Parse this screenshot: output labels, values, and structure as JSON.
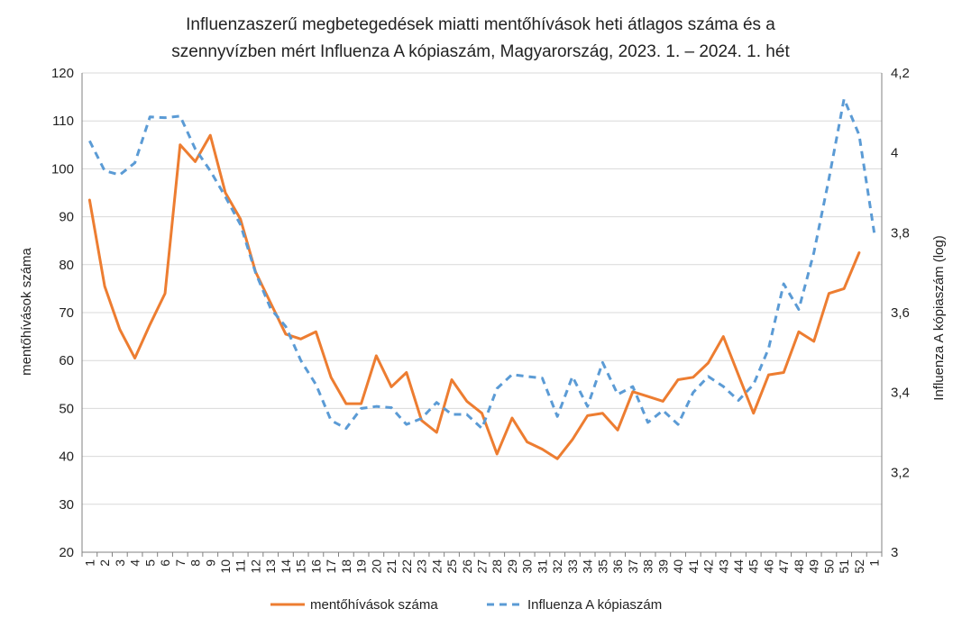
{
  "chart_data": {
    "type": "line",
    "title": [
      "Influenzaszerű megbetegedések miatti mentőhívások heti átlagos száma és a",
      "szennyvízben mért Influenza A kópiaszám, Magyarország, 2023. 1. – 2024. 1. hét"
    ],
    "ylabel": "mentőhívások száma",
    "y2label": "Influenza A kópiaszám (log)",
    "ylim": [
      20,
      120
    ],
    "y2lim": [
      3,
      4.2
    ],
    "yticks": [
      "20",
      "30",
      "40",
      "50",
      "60",
      "70",
      "80",
      "90",
      "100",
      "110",
      "120"
    ],
    "y2ticks": [
      "3",
      "3,2",
      "3,4",
      "3,6",
      "3,8",
      "4",
      "4,2"
    ],
    "categories": [
      "1",
      "2",
      "3",
      "4",
      "5",
      "6",
      "7",
      "8",
      "9",
      "10",
      "11",
      "12",
      "13",
      "14",
      "15",
      "16",
      "17",
      "18",
      "19",
      "20",
      "21",
      "22",
      "23",
      "24",
      "25",
      "26",
      "27",
      "28",
      "29",
      "30",
      "31",
      "32",
      "33",
      "34",
      "35",
      "36",
      "37",
      "38",
      "39",
      "40",
      "41",
      "42",
      "43",
      "44",
      "45",
      "46",
      "47",
      "48",
      "49",
      "50",
      "51",
      "52",
      "1"
    ],
    "series": [
      {
        "name": "mentőhívások száma",
        "axis": "left",
        "color": "#ED7D31",
        "dash": "solid",
        "values": [
          93.5,
          75.5,
          66.5,
          60.5,
          67.5,
          74,
          105,
          101.5,
          107,
          95,
          89.5,
          78.5,
          72,
          65.5,
          64.5,
          66,
          56.5,
          51,
          51,
          61,
          54.5,
          57.5,
          47.5,
          45,
          56,
          51.5,
          49,
          40.5,
          48,
          43,
          41.5,
          39.5,
          43.5,
          48.5,
          49,
          45.5,
          53.5,
          52.5,
          51.5,
          56,
          56.5,
          59.5,
          65,
          57,
          49,
          57,
          57.5,
          66,
          64,
          74,
          75,
          82.5,
          null
        ]
      },
      {
        "name": "Influenza A kópiaszám",
        "axis": "right",
        "color": "#5B9BD5",
        "dash": "dashed",
        "values": [
          4.03,
          3.955,
          3.945,
          3.975,
          4.09,
          4.088,
          4.092,
          4.01,
          3.955,
          3.89,
          3.82,
          3.7,
          3.61,
          3.565,
          3.48,
          3.42,
          3.33,
          3.31,
          3.36,
          3.365,
          3.362,
          3.32,
          3.335,
          3.375,
          3.345,
          3.345,
          3.31,
          3.41,
          3.445,
          3.44,
          3.436,
          3.34,
          3.44,
          3.365,
          3.475,
          3.395,
          3.415,
          3.325,
          3.355,
          3.32,
          3.4,
          3.44,
          3.415,
          3.38,
          3.42,
          3.51,
          3.672,
          3.608,
          3.75,
          3.935,
          4.135,
          4.045,
          3.8
        ]
      }
    ],
    "grid": true,
    "legend": "bottom"
  }
}
